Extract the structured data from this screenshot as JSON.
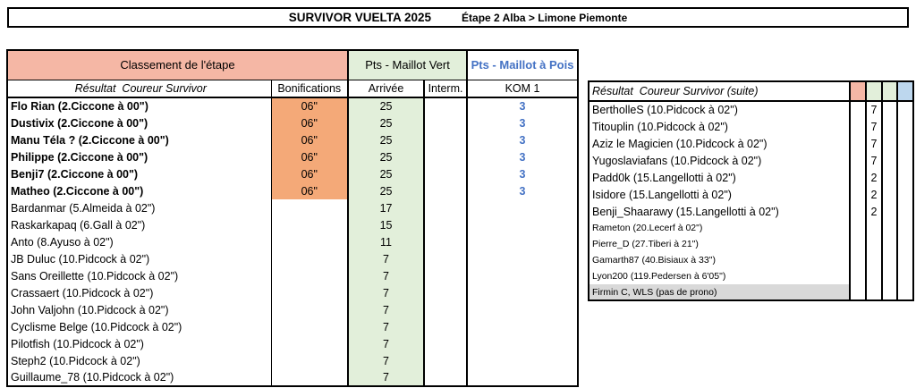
{
  "colors": {
    "salmon": "#f5b7a5",
    "orange": "#f4a978",
    "green": "#e2efda",
    "blue_fill": "#bdd7ee",
    "blue_text": "#4472c4",
    "gray": "#d9d9d9"
  },
  "title_bar": {
    "race_title": "SURVIVOR VUELTA 2025",
    "stage_title": "Étape 2 Alba > Limone Piemonte"
  },
  "left_table": {
    "group_headers": {
      "classement": "Classement de l'étape",
      "maillot_vert": "Pts - Maillot Vert",
      "maillot_pois": "Pts - Maillot à Pois"
    },
    "column_headers": {
      "resultat": "Résultat  Coureur Survivor",
      "bonifications": "Bonifications",
      "arrivee": "Arrivée",
      "interm": "Interm.",
      "kom": "KOM 1"
    },
    "rows": [
      {
        "name": "Flo Rian (2.Ciccone à 00\")",
        "bonif": "06\"",
        "arrivee": "25",
        "interm": "",
        "kom": "3",
        "bold": true
      },
      {
        "name": "Dustivix (2.Ciccone à 00\")",
        "bonif": "06\"",
        "arrivee": "25",
        "interm": "",
        "kom": "3",
        "bold": true
      },
      {
        "name": "Manu Téla ? (2.Ciccone à 00\")",
        "bonif": "06\"",
        "arrivee": "25",
        "interm": "",
        "kom": "3",
        "bold": true
      },
      {
        "name": "Philippe (2.Ciccone à 00\")",
        "bonif": "06\"",
        "arrivee": "25",
        "interm": "",
        "kom": "3",
        "bold": true
      },
      {
        "name": "Benji7 (2.Ciccone à 00\")",
        "bonif": "06\"",
        "arrivee": "25",
        "interm": "",
        "kom": "3",
        "bold": true
      },
      {
        "name": "Matheo (2.Ciccone à 00\")",
        "bonif": "06\"",
        "arrivee": "25",
        "interm": "",
        "kom": "3",
        "bold": true
      },
      {
        "name": "Bardanmar (5.Almeida à 02\")",
        "bonif": "",
        "arrivee": "17",
        "interm": "",
        "kom": "",
        "bold": false
      },
      {
        "name": "Raskarkapaq (6.Gall à 02\")",
        "bonif": "",
        "arrivee": "15",
        "interm": "",
        "kom": "",
        "bold": false
      },
      {
        "name": "Anto (8.Ayuso à 02\")",
        "bonif": "",
        "arrivee": "11",
        "interm": "",
        "kom": "",
        "bold": false
      },
      {
        "name": "JB Duluc (10.Pidcock à 02\")",
        "bonif": "",
        "arrivee": "7",
        "interm": "",
        "kom": "",
        "bold": false
      },
      {
        "name": "Sans Oreillette (10.Pidcock à 02\")",
        "bonif": "",
        "arrivee": "7",
        "interm": "",
        "kom": "",
        "bold": false
      },
      {
        "name": "Crassaert (10.Pidcock à 02\")",
        "bonif": "",
        "arrivee": "7",
        "interm": "",
        "kom": "",
        "bold": false
      },
      {
        "name": "John Valjohn (10.Pidcock à 02\")",
        "bonif": "",
        "arrivee": "7",
        "interm": "",
        "kom": "",
        "bold": false
      },
      {
        "name": "Cyclisme Belge (10.Pidcock à 02\")",
        "bonif": "",
        "arrivee": "7",
        "interm": "",
        "kom": "",
        "bold": false
      },
      {
        "name": "Pilotfish (10.Pidcock à 02\")",
        "bonif": "",
        "arrivee": "7",
        "interm": "",
        "kom": "",
        "bold": false
      },
      {
        "name": "Steph2 (10.Pidcock à 02\")",
        "bonif": "",
        "arrivee": "7",
        "interm": "",
        "kom": "",
        "bold": false
      },
      {
        "name": "Guillaume_78 (10.Pidcock à 02\")",
        "bonif": "",
        "arrivee": "7",
        "interm": "",
        "kom": "",
        "bold": false
      }
    ]
  },
  "right_table": {
    "header": "Résultat  Coureur Survivor (suite)",
    "rows": [
      {
        "name": "BertholleS (10.Pidcock à 02\")",
        "bonif": "",
        "arrivee": "7",
        "interm": "",
        "kom": "",
        "small": false,
        "gray": false
      },
      {
        "name": "Titouplin (10.Pidcock à 02\")",
        "bonif": "",
        "arrivee": "7",
        "interm": "",
        "kom": "",
        "small": false,
        "gray": false
      },
      {
        "name": "Aziz le Magicien (10.Pidcock à 02\")",
        "bonif": "",
        "arrivee": "7",
        "interm": "",
        "kom": "",
        "small": false,
        "gray": false
      },
      {
        "name": "Yugoslaviafans (10.Pidcock à 02\")",
        "bonif": "",
        "arrivee": "7",
        "interm": "",
        "kom": "",
        "small": false,
        "gray": false
      },
      {
        "name": "Padd0k (15.Langellotti à 02\")",
        "bonif": "",
        "arrivee": "2",
        "interm": "",
        "kom": "",
        "small": false,
        "gray": false
      },
      {
        "name": "Isidore (15.Langellotti à 02\")",
        "bonif": "",
        "arrivee": "2",
        "interm": "",
        "kom": "",
        "small": false,
        "gray": false
      },
      {
        "name": "Benji_Shaarawy (15.Langellotti à 02\")",
        "bonif": "",
        "arrivee": "2",
        "interm": "",
        "kom": "",
        "small": false,
        "gray": false
      },
      {
        "name": "Rameton (20.Lecerf à 02\")",
        "bonif": "",
        "arrivee": "",
        "interm": "",
        "kom": "",
        "small": true,
        "gray": false
      },
      {
        "name": "Pierre_D (27.Tiberi à 21\")",
        "bonif": "",
        "arrivee": "",
        "interm": "",
        "kom": "",
        "small": true,
        "gray": false
      },
      {
        "name": "Gamarth87 (40.Bisiaux à 33\")",
        "bonif": "",
        "arrivee": "",
        "interm": "",
        "kom": "",
        "small": true,
        "gray": false
      },
      {
        "name": "Lyon200 (119.Pedersen à 6'05\")",
        "bonif": "",
        "arrivee": "",
        "interm": "",
        "kom": "",
        "small": true,
        "gray": false
      },
      {
        "name": "Firmin C, WLS (pas de prono)",
        "bonif": "",
        "arrivee": "",
        "interm": "",
        "kom": "",
        "small": true,
        "gray": true
      }
    ]
  }
}
